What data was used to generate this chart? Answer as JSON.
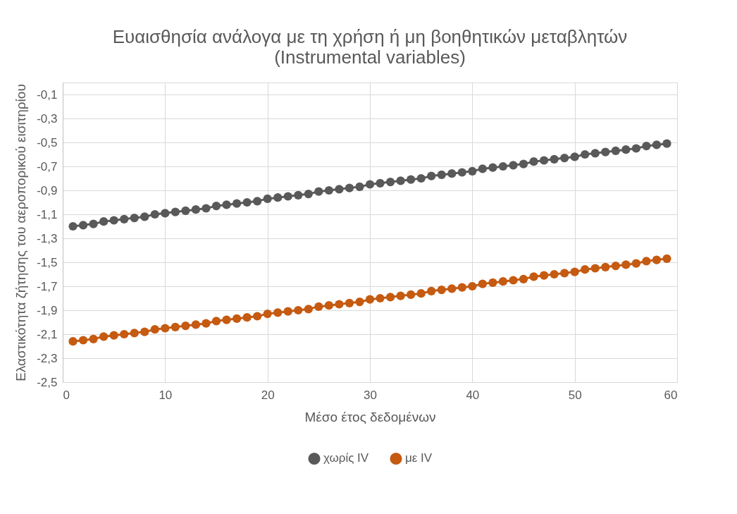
{
  "chart_data": {
    "type": "line",
    "title": "Ευαισθησία ανάλογα με τη χρήση ή μη βοηθητικών μεταβλητών",
    "subtitle": "(Instrumental variables)",
    "xlabel": "Μέσο έτος δεδομένων",
    "ylabel": "Ελαστικότητα ζήτησης του αεροπορικού εισιτηρίου",
    "x": [
      1,
      2,
      3,
      4,
      5,
      6,
      7,
      8,
      9,
      10,
      11,
      12,
      13,
      14,
      15,
      16,
      17,
      18,
      19,
      20,
      21,
      22,
      23,
      24,
      25,
      26,
      27,
      28,
      29,
      30,
      31,
      32,
      33,
      34,
      35,
      36,
      37,
      38,
      39,
      40,
      41,
      42,
      43,
      44,
      45,
      46,
      47,
      48,
      49,
      50,
      51,
      52,
      53,
      54,
      55,
      56,
      57,
      58,
      59
    ],
    "series": [
      {
        "name": "χωρίς IV",
        "color": "#595959",
        "values": [
          -1.2,
          -1.19,
          -1.18,
          -1.16,
          -1.15,
          -1.14,
          -1.13,
          -1.12,
          -1.1,
          -1.09,
          -1.08,
          -1.07,
          -1.06,
          -1.05,
          -1.03,
          -1.02,
          -1.01,
          -1.0,
          -0.99,
          -0.97,
          -0.96,
          -0.95,
          -0.94,
          -0.93,
          -0.91,
          -0.9,
          -0.89,
          -0.88,
          -0.87,
          -0.85,
          -0.84,
          -0.83,
          -0.82,
          -0.81,
          -0.8,
          -0.78,
          -0.77,
          -0.76,
          -0.75,
          -0.74,
          -0.72,
          -0.71,
          -0.7,
          -0.69,
          -0.68,
          -0.66,
          -0.65,
          -0.64,
          -0.63,
          -0.62,
          -0.6,
          -0.59,
          -0.58,
          -0.57,
          -0.56,
          -0.55,
          -0.53,
          -0.52,
          -0.51
        ]
      },
      {
        "name": "με IV",
        "color": "#c55a11",
        "values": [
          -2.16,
          -2.15,
          -2.14,
          -2.12,
          -2.11,
          -2.1,
          -2.09,
          -2.08,
          -2.06,
          -2.05,
          -2.04,
          -2.03,
          -2.02,
          -2.01,
          -1.99,
          -1.98,
          -1.97,
          -1.96,
          -1.95,
          -1.93,
          -1.92,
          -1.91,
          -1.9,
          -1.89,
          -1.87,
          -1.86,
          -1.85,
          -1.84,
          -1.83,
          -1.81,
          -1.8,
          -1.79,
          -1.78,
          -1.77,
          -1.76,
          -1.74,
          -1.73,
          -1.72,
          -1.71,
          -1.7,
          -1.68,
          -1.67,
          -1.66,
          -1.65,
          -1.64,
          -1.62,
          -1.61,
          -1.6,
          -1.59,
          -1.58,
          -1.56,
          -1.55,
          -1.54,
          -1.53,
          -1.52,
          -1.51,
          -1.49,
          -1.48,
          -1.47
        ]
      }
    ],
    "xlim": [
      0,
      60
    ],
    "xticks": [
      0,
      10,
      20,
      30,
      40,
      50,
      60
    ],
    "ylim": [
      -2.5,
      0
    ],
    "yticks": [
      {
        "value": -2.5,
        "label": "-2,5"
      },
      {
        "value": -2.3,
        "label": "-2,3"
      },
      {
        "value": -2.1,
        "label": "-2,1"
      },
      {
        "value": -1.9,
        "label": "-1,9"
      },
      {
        "value": -1.7,
        "label": "-1,7"
      },
      {
        "value": -1.5,
        "label": "-1,5"
      },
      {
        "value": -1.3,
        "label": "-1,3"
      },
      {
        "value": -1.1,
        "label": "-1,1"
      },
      {
        "value": -0.9,
        "label": "-0,9"
      },
      {
        "value": -0.7,
        "label": "-0,7"
      },
      {
        "value": -0.5,
        "label": "-0,5"
      },
      {
        "value": -0.3,
        "label": "-0,3"
      },
      {
        "value": -0.1,
        "label": "-0,1"
      }
    ],
    "grid": true,
    "legend": "bottom",
    "marker": "circle",
    "line_style": "solid"
  }
}
